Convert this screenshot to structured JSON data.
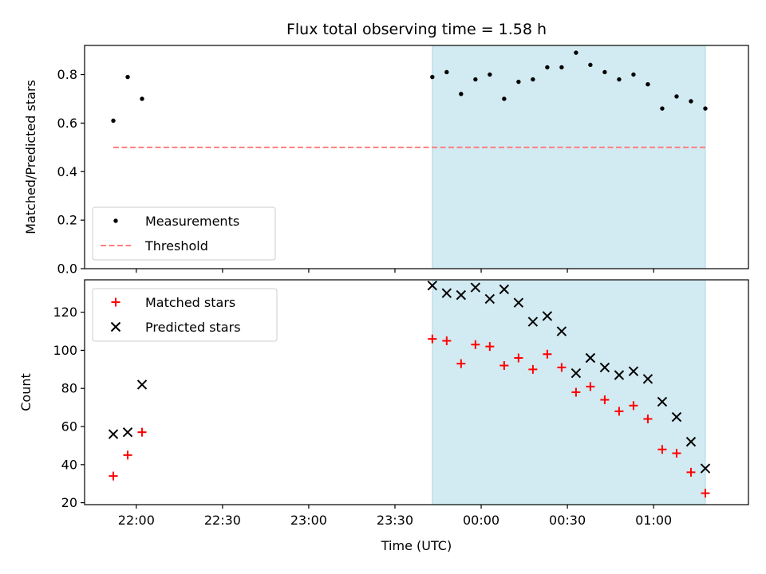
{
  "chart_data": [
    {
      "type": "scatter",
      "title": "Flux total observing time = 1.58 h",
      "xlabel": "",
      "ylabel": "Matched/Predicted stars",
      "xlim": [
        "21:42",
        "01:33"
      ],
      "ylim": [
        0.0,
        0.92
      ],
      "yticks": [
        "0.0",
        "0.2",
        "0.4",
        "0.6",
        "0.8"
      ],
      "shaded_interval": [
        "23:43",
        "01:18"
      ],
      "legend_position": "lower-left",
      "series": [
        {
          "name": "Measurements",
          "marker": "dot",
          "color": "#000000",
          "x": [
            "21:52",
            "21:57",
            "22:02",
            "23:43",
            "23:48",
            "23:53",
            "23:58",
            "00:03",
            "00:08",
            "00:13",
            "00:18",
            "00:23",
            "00:28",
            "00:33",
            "00:38",
            "00:43",
            "00:48",
            "00:53",
            "00:58",
            "01:03",
            "01:08",
            "01:13",
            "01:18"
          ],
          "y": [
            0.61,
            0.79,
            0.7,
            0.79,
            0.81,
            0.72,
            0.78,
            0.8,
            0.7,
            0.77,
            0.78,
            0.83,
            0.83,
            0.89,
            0.84,
            0.81,
            0.78,
            0.8,
            0.76,
            0.66,
            0.71,
            0.69,
            0.66
          ]
        },
        {
          "name": "Threshold",
          "style": "dashed",
          "color": "#ff7f7f",
          "x": [
            "21:52",
            "01:18"
          ],
          "y": [
            0.5,
            0.5
          ]
        }
      ]
    },
    {
      "type": "scatter",
      "xlabel": "Time (UTC)",
      "ylabel": "Count",
      "xlim": [
        "21:42",
        "01:33"
      ],
      "ylim": [
        19,
        137
      ],
      "xticks": [
        "22:00",
        "22:30",
        "23:00",
        "23:30",
        "00:00",
        "00:30",
        "01:00"
      ],
      "yticks": [
        "20",
        "40",
        "60",
        "80",
        "100",
        "120"
      ],
      "shaded_interval": [
        "23:43",
        "01:18"
      ],
      "legend_position": "upper-left",
      "series": [
        {
          "name": "Matched stars",
          "marker": "plus",
          "color": "#ff0000",
          "x": [
            "21:52",
            "21:57",
            "22:02",
            "23:43",
            "23:48",
            "23:53",
            "23:58",
            "00:03",
            "00:08",
            "00:13",
            "00:18",
            "00:23",
            "00:28",
            "00:33",
            "00:38",
            "00:43",
            "00:48",
            "00:53",
            "00:58",
            "01:03",
            "01:08",
            "01:13",
            "01:18"
          ],
          "y": [
            34,
            45,
            57,
            106,
            105,
            93,
            103,
            102,
            92,
            96,
            90,
            98,
            91,
            78,
            81,
            74,
            68,
            71,
            64,
            48,
            46,
            36,
            25
          ]
        },
        {
          "name": "Predicted stars",
          "marker": "x",
          "color": "#000000",
          "x": [
            "21:52",
            "21:57",
            "22:02",
            "23:43",
            "23:48",
            "23:53",
            "23:58",
            "00:03",
            "00:08",
            "00:13",
            "00:18",
            "00:23",
            "00:28",
            "00:33",
            "00:38",
            "00:43",
            "00:48",
            "00:53",
            "00:58",
            "01:03",
            "01:08",
            "01:13",
            "01:18"
          ],
          "y": [
            56,
            57,
            82,
            134,
            130,
            129,
            133,
            127,
            132,
            125,
            115,
            118,
            110,
            88,
            96,
            91,
            87,
            89,
            85,
            73,
            65,
            52,
            38
          ]
        }
      ]
    }
  ],
  "colors": {
    "shade": "#add8e6",
    "matched": "#ff0000",
    "predicted": "#000000",
    "measurement": "#000000",
    "threshold": "#ff7f7f"
  }
}
